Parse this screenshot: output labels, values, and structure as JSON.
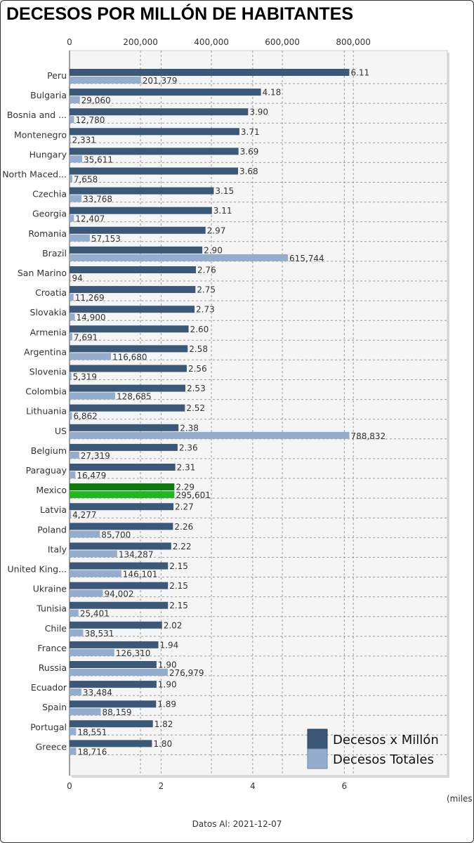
{
  "title": "DECESOS POR MILLÓN DE HABITANTES",
  "units_note": "(miles)",
  "footer": "Datos Al: 2021-12-07",
  "colors": {
    "per_million": "#3b5878",
    "total": "#94adcc",
    "highlight_per_million": "#0e7a0e",
    "highlight_total": "#1fb81f",
    "plot_bg": "#f5f5f5",
    "grid": "#9a9a9a"
  },
  "chart_data": {
    "type": "bar",
    "orientation": "horizontal",
    "categories": [
      "Peru",
      "Bulgaria",
      "Bosnia and ...",
      "Montenegro",
      "Hungary",
      "North Maced...",
      "Czechia",
      "Georgia",
      "Romania",
      "Brazil",
      "San Marino",
      "Croatia",
      "Slovakia",
      "Armenia",
      "Argentina",
      "Slovenia",
      "Colombia",
      "Lithuania",
      "US",
      "Belgium",
      "Paraguay",
      "Mexico",
      "Latvia",
      "Poland",
      "Italy",
      "United King...",
      "Ukraine",
      "Tunisia",
      "Chile",
      "France",
      "Russia",
      "Ecuador",
      "Spain",
      "Portugal",
      "Greece"
    ],
    "highlight": "Mexico",
    "series": [
      {
        "name": "Decesos x Millón",
        "axis": "bottom",
        "values": [
          6.11,
          4.18,
          3.9,
          3.71,
          3.69,
          3.68,
          3.15,
          3.11,
          2.97,
          2.9,
          2.76,
          2.75,
          2.73,
          2.6,
          2.58,
          2.56,
          2.53,
          2.52,
          2.38,
          2.36,
          2.31,
          2.29,
          2.27,
          2.26,
          2.22,
          2.15,
          2.15,
          2.15,
          2.02,
          1.94,
          1.9,
          1.9,
          1.89,
          1.82,
          1.8
        ],
        "labels": [
          "6.11",
          "4.18",
          "3.90",
          "3.71",
          "3.69",
          "3.68",
          "3.15",
          "3.11",
          "2.97",
          "2.90",
          "2.76",
          "2.75",
          "2.73",
          "2.60",
          "2.58",
          "2.56",
          "2.53",
          "2.52",
          "2.38",
          "2.36",
          "2.31",
          "2.29",
          "2.27",
          "2.26",
          "2.22",
          "2.15",
          "2.15",
          "2.15",
          "2.02",
          "1.94",
          "1.90",
          "1.90",
          "1.89",
          "1.82",
          "1.80"
        ]
      },
      {
        "name": "Decesos Totales",
        "axis": "top",
        "values": [
          201379,
          29060,
          12780,
          2331,
          35611,
          7658,
          33768,
          12407,
          57153,
          615744,
          94,
          11269,
          14900,
          7691,
          116680,
          5319,
          128685,
          6862,
          788832,
          27319,
          16479,
          295601,
          4277,
          85700,
          134287,
          146101,
          94002,
          25401,
          38531,
          126310,
          276979,
          33484,
          88159,
          18551,
          18716
        ],
        "labels": [
          "201,379",
          "29,060",
          "12,780",
          "2,331",
          "35,611",
          "7,658",
          "33,768",
          "12,407",
          "57,153",
          "615,744",
          "94",
          "11,269",
          "14,900",
          "7,691",
          "116,680",
          "5,319",
          "128,685",
          "6,862",
          "788,832",
          "27,319",
          "16,479",
          "295,601",
          "4,277",
          "85,700",
          "134,287",
          "146,101",
          "94,002",
          "25,401",
          "38,531",
          "126,310",
          "276,979",
          "33,484",
          "88,159",
          "18,551",
          "18,716"
        ]
      }
    ],
    "bottom_axis": {
      "min": 0,
      "max": 8.25,
      "ticks": [
        0,
        2,
        4,
        6
      ],
      "tick_labels": [
        "0",
        "2",
        "4",
        "6"
      ]
    },
    "top_axis": {
      "min": 0,
      "max": 1065000,
      "ticks": [
        0,
        200000,
        400000,
        600000,
        800000
      ],
      "tick_labels": [
        "0",
        "200,000",
        "400,000",
        "600,000",
        "800,000"
      ]
    },
    "grid": true,
    "legend": {
      "position": "bottom-right",
      "entries": [
        "Decesos x Millón",
        "Decesos Totales"
      ]
    }
  }
}
